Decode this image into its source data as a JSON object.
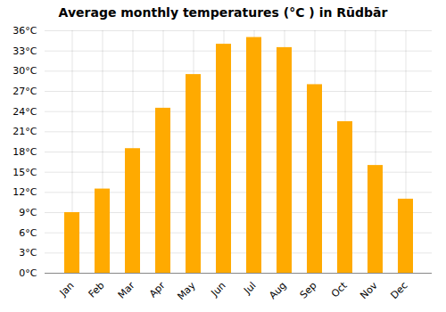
{
  "chart_data": {
    "type": "bar",
    "title": "Average monthly temperatures (°C ) in Rūdbār",
    "categories": [
      "Jan",
      "Feb",
      "Mar",
      "Apr",
      "May",
      "Jun",
      "Jul",
      "Aug",
      "Sep",
      "Oct",
      "Nov",
      "Dec"
    ],
    "values": [
      9,
      12.5,
      18.5,
      24.5,
      29.5,
      34,
      35,
      33.5,
      28,
      22.5,
      16,
      11
    ],
    "color": "#FFAA00",
    "ylim": [
      0,
      36
    ],
    "yticks": [
      {
        "value": 0,
        "label": "0°C"
      },
      {
        "value": 3,
        "label": "3°C"
      },
      {
        "value": 6,
        "label": "6°C"
      },
      {
        "value": 9,
        "label": "9°C"
      },
      {
        "value": 12,
        "label": "12°C"
      },
      {
        "value": 15,
        "label": "15°C"
      },
      {
        "value": 18,
        "label": "18°C"
      },
      {
        "value": 21,
        "label": "21°C"
      },
      {
        "value": 24,
        "label": "24°C"
      },
      {
        "value": 27,
        "label": "27°C"
      },
      {
        "value": 30,
        "label": "30°C"
      },
      {
        "value": 33,
        "label": "33°C"
      },
      {
        "value": 36,
        "label": "36°C"
      }
    ],
    "grid": true
  }
}
